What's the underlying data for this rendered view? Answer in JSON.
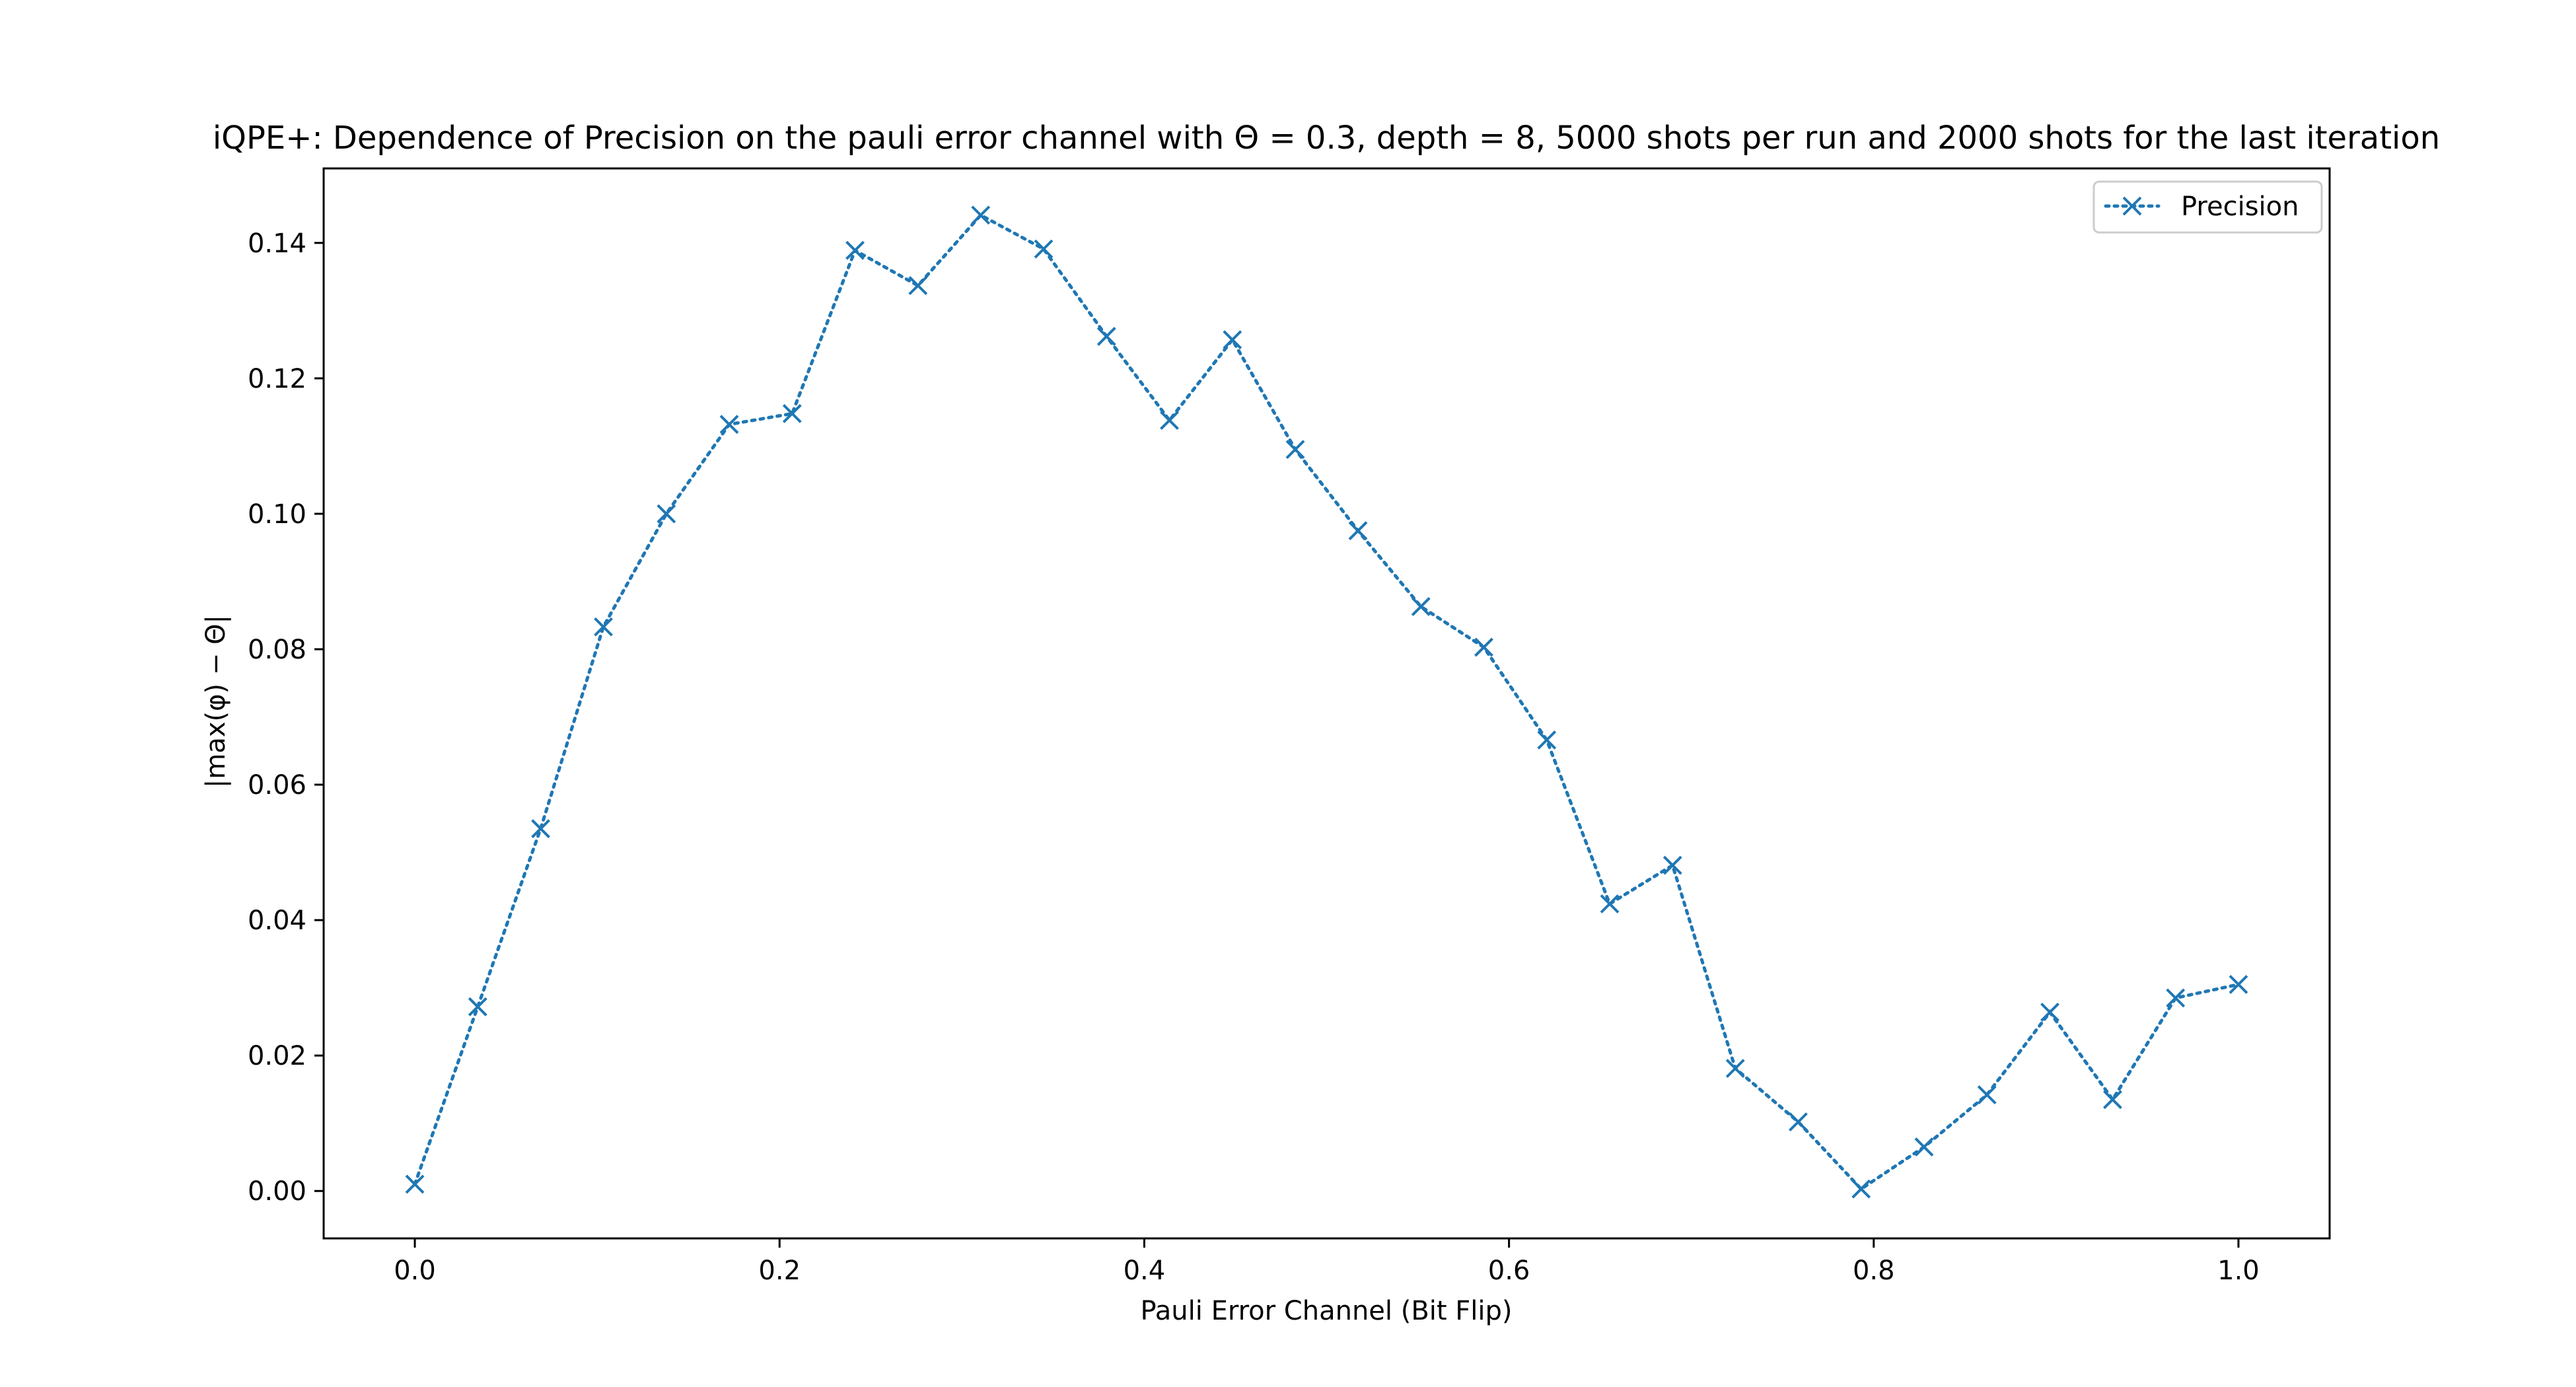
{
  "chart_data": {
    "type": "line",
    "title": "iQPE+: Dependence of Precision on the pauli error channel with Θ = 0.3, depth = 8, 5000 shots per run and 2000 shots for the last iteration",
    "xlabel": "Pauli Error Channel (Bit Flip)",
    "ylabel": "|max(φ) − Θ|",
    "xlim": [
      -0.05,
      1.05
    ],
    "ylim": [
      -0.007,
      0.151
    ],
    "xticks": [
      0.0,
      0.2,
      0.4,
      0.6,
      0.8,
      1.0
    ],
    "xtick_labels": [
      "0.0",
      "0.2",
      "0.4",
      "0.6",
      "0.8",
      "1.0"
    ],
    "yticks": [
      0.0,
      0.02,
      0.04,
      0.06,
      0.08,
      0.1,
      0.12,
      0.14
    ],
    "ytick_labels": [
      "0.00",
      "0.02",
      "0.04",
      "0.06",
      "0.08",
      "0.10",
      "0.12",
      "0.14"
    ],
    "grid": false,
    "legend_position": "top-right",
    "series": [
      {
        "name": "Precision",
        "color": "#1f77b4",
        "line_style": "dotted",
        "marker": "x",
        "x": [
          0.0,
          0.0345,
          0.069,
          0.1034,
          0.1379,
          0.1724,
          0.2069,
          0.2414,
          0.2759,
          0.3103,
          0.3448,
          0.3793,
          0.4138,
          0.4483,
          0.4828,
          0.5172,
          0.5517,
          0.5862,
          0.6207,
          0.6552,
          0.6897,
          0.7241,
          0.7586,
          0.7931,
          0.8276,
          0.8621,
          0.8966,
          0.931,
          0.9655,
          1.0
        ],
        "values": [
          0.001,
          0.0272,
          0.0535,
          0.0833,
          0.1,
          0.1132,
          0.1148,
          0.1389,
          0.1337,
          0.1441,
          0.1391,
          0.1262,
          0.1138,
          0.1257,
          0.1095,
          0.0975,
          0.0863,
          0.0803,
          0.0666,
          0.0424,
          0.0481,
          0.0181,
          0.0102,
          0.0003,
          0.0065,
          0.0142,
          0.0264,
          0.0135,
          0.0285,
          0.0305
        ]
      }
    ]
  }
}
